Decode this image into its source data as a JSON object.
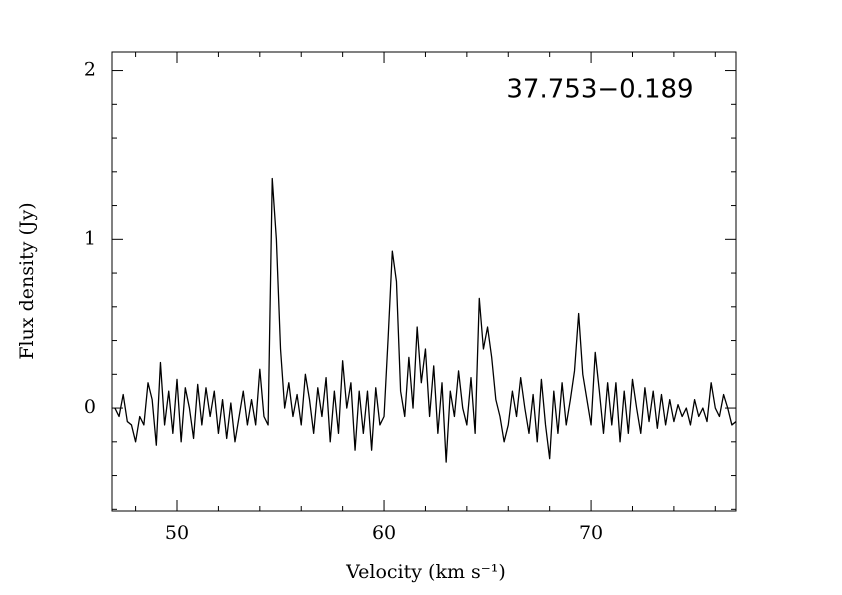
{
  "chart_data": {
    "type": "line",
    "annotation": "37.753−0.189",
    "xlabel": "Velocity (km s⁻¹)",
    "ylabel": "Flux density (Jy)",
    "color": "#000000",
    "xlim": [
      46.86,
      77.0
    ],
    "ylim": [
      -0.61,
      2.11
    ],
    "xticks": [
      50,
      60,
      70
    ],
    "yticks": [
      0,
      1,
      2
    ],
    "xminorticks": [
      48,
      52,
      54,
      56,
      58,
      62,
      64,
      66,
      68,
      72,
      74,
      76
    ],
    "yminorticks": [
      -0.6,
      -0.4,
      -0.2,
      0.2,
      0.4,
      0.6,
      0.8,
      1.2,
      1.4,
      1.6,
      1.8
    ],
    "x": [
      47.0,
      47.2,
      47.4,
      47.6,
      47.8,
      48.0,
      48.2,
      48.4,
      48.6,
      48.8,
      49.0,
      49.2,
      49.4,
      49.6,
      49.8,
      50.0,
      50.2,
      50.4,
      50.6,
      50.8,
      51.0,
      51.2,
      51.4,
      51.6,
      51.8,
      52.0,
      52.2,
      52.4,
      52.6,
      52.8,
      53.0,
      53.2,
      53.4,
      53.6,
      53.8,
      54.0,
      54.2,
      54.4,
      54.6,
      54.8,
      55.0,
      55.2,
      55.4,
      55.6,
      55.8,
      56.0,
      56.2,
      56.4,
      56.6,
      56.8,
      57.0,
      57.2,
      57.4,
      57.6,
      57.8,
      58.0,
      58.2,
      58.4,
      58.6,
      58.8,
      59.0,
      59.2,
      59.4,
      59.6,
      59.8,
      60.0,
      60.2,
      60.4,
      60.6,
      60.8,
      61.0,
      61.2,
      61.4,
      61.6,
      61.8,
      62.0,
      62.2,
      62.4,
      62.6,
      62.8,
      63.0,
      63.2,
      63.4,
      63.6,
      63.8,
      64.0,
      64.2,
      64.4,
      64.6,
      64.8,
      65.0,
      65.2,
      65.4,
      65.6,
      65.8,
      66.0,
      66.2,
      66.4,
      66.6,
      66.8,
      67.0,
      67.2,
      67.4,
      67.6,
      67.8,
      68.0,
      68.2,
      68.4,
      68.6,
      68.8,
      69.0,
      69.2,
      69.4,
      69.6,
      69.8,
      70.0,
      70.2,
      70.4,
      70.6,
      70.8,
      71.0,
      71.2,
      71.4,
      71.6,
      71.8,
      72.0,
      72.2,
      72.4,
      72.6,
      72.8,
      73.0,
      73.2,
      73.4,
      73.6,
      73.8,
      74.0,
      74.2,
      74.4,
      74.6,
      74.8,
      75.0,
      75.2,
      75.4,
      75.6,
      75.8,
      76.0,
      76.2,
      76.4,
      76.6,
      76.8,
      77.0
    ],
    "values": [
      0.0,
      -0.05,
      0.08,
      -0.08,
      -0.1,
      -0.2,
      -0.05,
      -0.1,
      0.15,
      0.05,
      -0.22,
      0.27,
      -0.1,
      0.1,
      -0.15,
      0.17,
      -0.2,
      0.12,
      0.0,
      -0.18,
      0.14,
      -0.1,
      0.12,
      -0.05,
      0.1,
      -0.15,
      0.05,
      -0.18,
      0.03,
      -0.2,
      -0.05,
      0.1,
      -0.1,
      0.05,
      -0.1,
      0.23,
      -0.05,
      -0.1,
      1.36,
      1.0,
      0.35,
      0.0,
      0.15,
      -0.05,
      0.08,
      -0.1,
      0.2,
      0.05,
      -0.15,
      0.12,
      -0.05,
      0.18,
      -0.2,
      0.1,
      -0.15,
      0.28,
      0.0,
      0.15,
      -0.25,
      0.1,
      -0.15,
      0.1,
      -0.25,
      0.12,
      -0.1,
      -0.05,
      0.42,
      0.93,
      0.75,
      0.1,
      -0.05,
      0.3,
      0.0,
      0.48,
      0.15,
      0.35,
      -0.05,
      0.25,
      -0.15,
      0.15,
      -0.32,
      0.1,
      -0.05,
      0.22,
      0.0,
      -0.1,
      0.18,
      -0.15,
      0.65,
      0.35,
      0.48,
      0.3,
      0.05,
      -0.05,
      -0.2,
      -0.1,
      0.1,
      -0.05,
      0.18,
      0.0,
      -0.15,
      0.08,
      -0.2,
      0.17,
      -0.1,
      -0.3,
      0.1,
      -0.15,
      0.15,
      -0.1,
      0.05,
      0.22,
      0.56,
      0.2,
      0.05,
      -0.1,
      0.33,
      0.1,
      -0.15,
      0.15,
      -0.1,
      0.15,
      -0.2,
      0.1,
      -0.15,
      0.17,
      0.0,
      -0.15,
      0.12,
      -0.08,
      0.1,
      -0.12,
      0.08,
      -0.1,
      0.05,
      -0.08,
      0.02,
      -0.05,
      0.0,
      -0.1,
      0.05,
      -0.05,
      0.0,
      -0.08,
      0.15,
      0.0,
      -0.05,
      0.08,
      0.0,
      -0.1,
      -0.08
    ]
  }
}
